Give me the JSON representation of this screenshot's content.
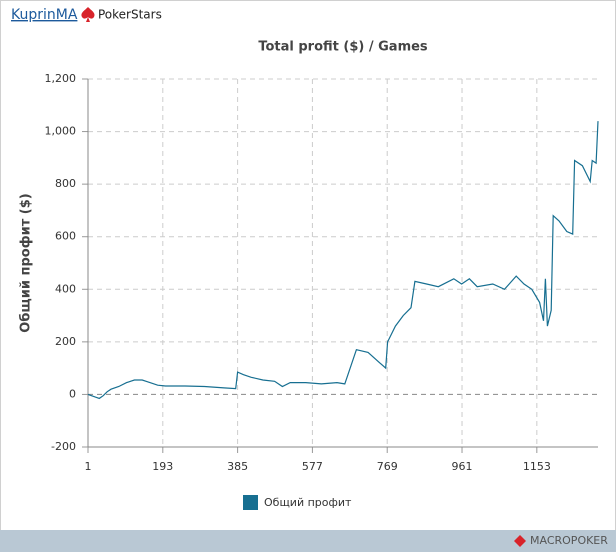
{
  "header": {
    "user": "KuprinMA",
    "site": "PokerStars"
  },
  "footer": {
    "brand": "MACROPOKER"
  },
  "chart_data": {
    "type": "line",
    "title": "Total profit ($) / Games",
    "y_label": "Общий профит ($)",
    "x": [
      1,
      10,
      20,
      30,
      40,
      50,
      60,
      80,
      100,
      120,
      140,
      160,
      180,
      200,
      250,
      300,
      350,
      380,
      385,
      400,
      420,
      450,
      480,
      500,
      520,
      560,
      600,
      640,
      660,
      690,
      720,
      750,
      765,
      770,
      790,
      810,
      830,
      840,
      870,
      900,
      940,
      960,
      980,
      1000,
      1040,
      1070,
      1100,
      1120,
      1140,
      1160,
      1170,
      1175,
      1180,
      1190,
      1195,
      1210,
      1230,
      1245,
      1250,
      1270,
      1290,
      1295,
      1305,
      1310
    ],
    "series": [
      {
        "name": "Общий профит",
        "color": "#176f91",
        "values": [
          0,
          -5,
          -10,
          -15,
          -5,
          10,
          20,
          30,
          45,
          55,
          55,
          45,
          35,
          32,
          32,
          30,
          25,
          22,
          85,
          75,
          65,
          55,
          50,
          30,
          45,
          45,
          40,
          45,
          40,
          170,
          160,
          120,
          100,
          200,
          260,
          300,
          330,
          430,
          420,
          410,
          440,
          420,
          440,
          410,
          420,
          400,
          450,
          420,
          400,
          350,
          280,
          440,
          260,
          320,
          680,
          660,
          620,
          610,
          890,
          870,
          810,
          890,
          880,
          1040
        ]
      }
    ],
    "xlim": [
      1,
      1310
    ],
    "xticks": [
      1,
      193,
      385,
      577,
      769,
      961,
      1153
    ],
    "ylim": [
      -200,
      1200
    ],
    "yticks": [
      -200,
      0,
      200,
      400,
      600,
      800,
      {
        "value": 1000,
        "label": "1,000"
      },
      {
        "value": 1200,
        "label": "1,200"
      }
    ],
    "grid": true,
    "legend": "bottom"
  }
}
